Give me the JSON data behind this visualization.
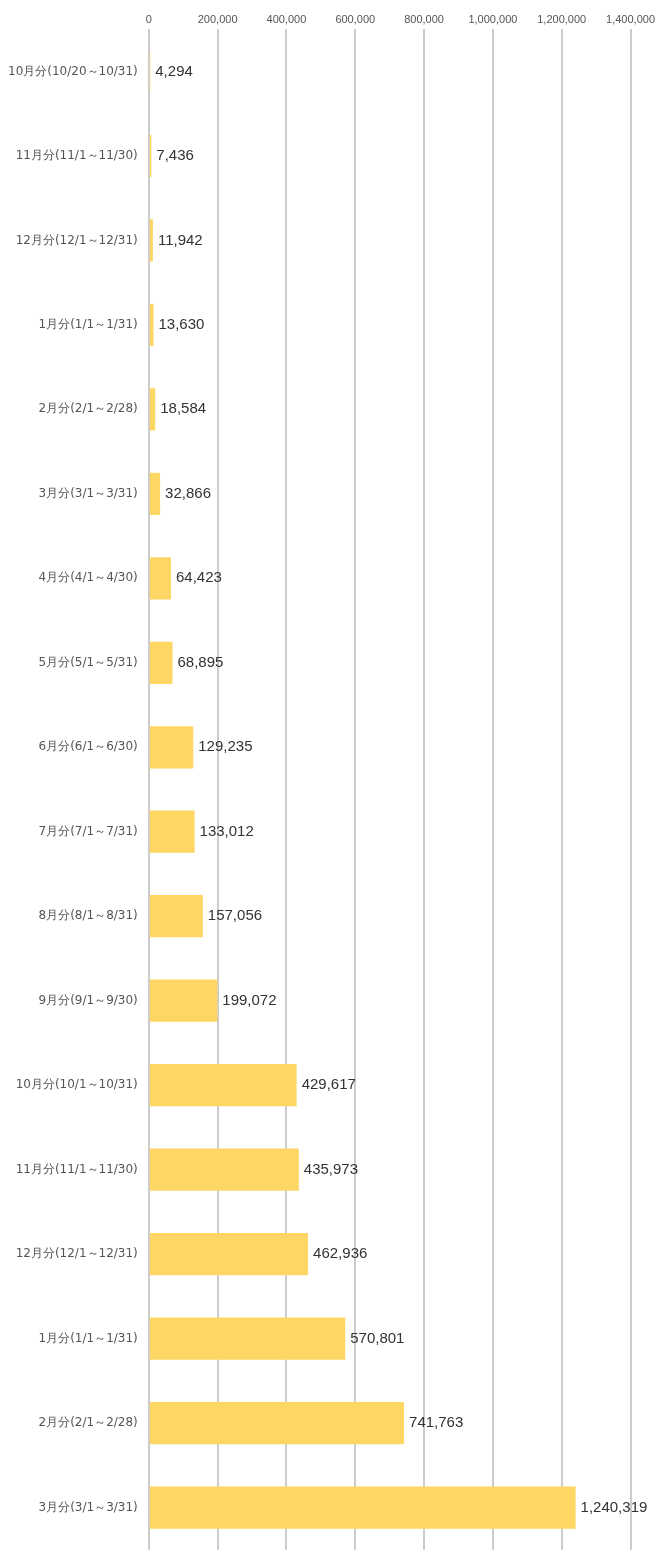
{
  "chart_data": {
    "type": "bar",
    "orientation": "horizontal",
    "categories": [
      "10月分(10/20～10/31)",
      "11月分(11/1～11/30)",
      "12月分(12/1～12/31)",
      "1月分(1/1～1/31)",
      "2月分(2/1～2/28)",
      "3月分(3/1～3/31)",
      "4月分(4/1～4/30)",
      "5月分(5/1～5/31)",
      "6月分(6/1～6/30)",
      "7月分(7/1～7/31)",
      "8月分(8/1～8/31)",
      "9月分(9/1～9/30)",
      "10月分(10/1～10/31)",
      "11月分(11/1～11/30)",
      "12月分(12/1～12/31)",
      "1月分(1/1～1/31)",
      "2月分(2/1～2/28)",
      "3月分(3/1～3/31)"
    ],
    "values": [
      4294,
      7436,
      11942,
      13630,
      18584,
      32866,
      64423,
      68895,
      129235,
      133012,
      157056,
      199072,
      429617,
      435973,
      462936,
      570801,
      741763,
      1240319
    ],
    "value_labels": [
      "4,294",
      "7,436",
      "11,942",
      "13,630",
      "18,584",
      "32,866",
      "64,423",
      "68,895",
      "129,235",
      "133,012",
      "157,056",
      "199,072",
      "429,617",
      "435,973",
      "462,936",
      "570,801",
      "741,763",
      "1,240,319"
    ],
    "color": "#fdd663",
    "xlim": [
      0,
      1400000
    ],
    "xticks": [
      0,
      {
        "value": 200000,
        "label": "200,000"
      },
      {
        "value": 400000,
        "label": "400,000"
      },
      {
        "value": 600000,
        "label": "600,000"
      },
      {
        "value": 800000,
        "label": "800,000"
      },
      {
        "value": 1000000,
        "label": "1,000,000"
      },
      {
        "value": 1200000,
        "label": "1,200,000"
      },
      {
        "value": 1400000,
        "label": "1,400,000"
      }
    ],
    "grid": "x"
  }
}
